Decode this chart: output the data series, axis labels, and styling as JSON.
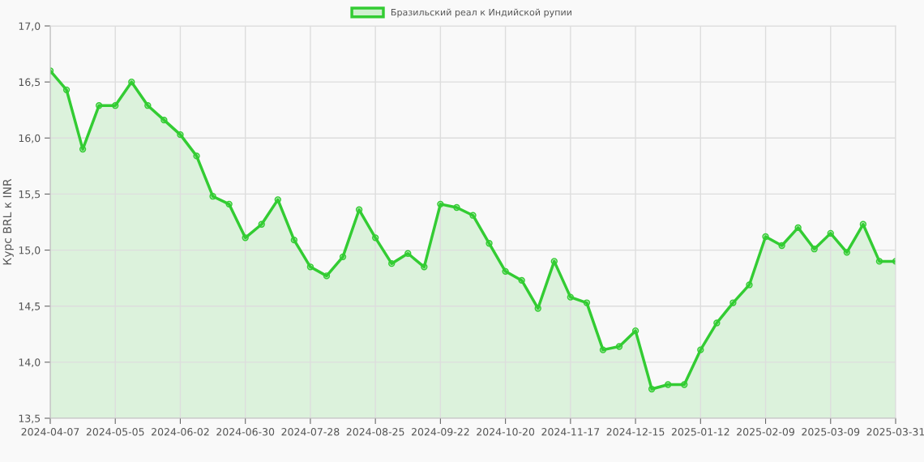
{
  "chart_data": {
    "type": "area",
    "ylabel": "Курс BRL к INR",
    "categories": [
      "2024-04-07",
      null,
      null,
      null,
      "2024-05-05",
      null,
      null,
      null,
      "2024-06-02",
      null,
      null,
      null,
      "2024-06-30",
      null,
      null,
      null,
      "2024-07-28",
      null,
      null,
      null,
      "2024-08-25",
      null,
      null,
      null,
      "2024-09-22",
      null,
      null,
      null,
      "2024-10-20",
      null,
      null,
      null,
      "2024-11-17",
      null,
      null,
      null,
      "2024-12-15",
      null,
      null,
      null,
      "2025-01-12",
      null,
      null,
      null,
      "2025-02-09",
      null,
      null,
      null,
      "2025-03-09",
      null,
      null,
      null,
      "2025-03-31"
    ],
    "series": [
      {
        "name": "Бразильский реал к Индийской рупии",
        "color": "#33cc33",
        "values": [
          16.6,
          16.43,
          15.9,
          16.29,
          16.29,
          16.5,
          16.29,
          16.16,
          16.03,
          15.84,
          15.48,
          15.41,
          15.11,
          15.23,
          15.45,
          15.09,
          14.85,
          14.77,
          14.94,
          15.36,
          15.11,
          14.88,
          14.97,
          14.85,
          15.41,
          15.38,
          15.31,
          15.06,
          14.81,
          14.73,
          14.48,
          14.9,
          14.58,
          14.53,
          14.11,
          14.14,
          14.28,
          13.76,
          13.8,
          13.8,
          14.11,
          14.35,
          14.53,
          14.69,
          15.12,
          15.04,
          15.2,
          15.01,
          15.15,
          14.98,
          15.23,
          14.9,
          14.9
        ]
      }
    ],
    "ylim": [
      13.5,
      17.0
    ],
    "yticks": [
      {
        "value": 13.5,
        "label": "13,5"
      },
      {
        "value": 14.0,
        "label": "14,0"
      },
      {
        "value": 14.5,
        "label": "14,5"
      },
      {
        "value": 15.0,
        "label": "15,0"
      },
      {
        "value": 15.5,
        "label": "15,5"
      },
      {
        "value": 16.0,
        "label": "16,0"
      },
      {
        "value": 16.5,
        "label": "16,5"
      },
      {
        "value": 17.0,
        "label": "17,0"
      }
    ],
    "grid": true,
    "legend": "top",
    "marker": "circle",
    "line_style": "solid"
  }
}
